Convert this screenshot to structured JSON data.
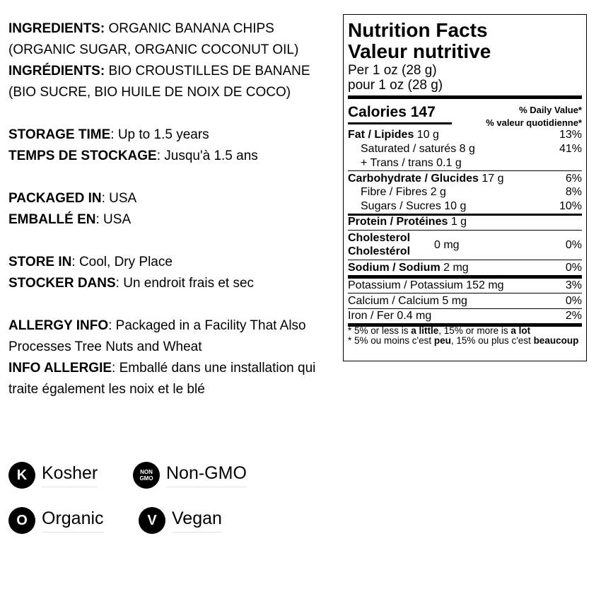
{
  "info": {
    "ingredients_label": "INGREDIENTS:",
    "ingredients_text": " ORGANIC BANANA CHIPS (ORGANIC SUGAR, ORGANIC COCONUT OIL)",
    "ingredients_fr_label": "INGRÉDIENTS:",
    "ingredients_fr_text": " BIO CROUSTILLES DE BANANE (BIO SUCRE, BIO HUILE DE NOIX DE COCO)",
    "storage_label": "STORAGE TIME",
    "storage_text": ": Up to 1.5 years",
    "storage_fr_label": "TEMPS DE STOCKAGE",
    "storage_fr_text": ": Jusqu'à 1.5 ans",
    "packaged_label": "PACKAGED IN",
    "packaged_text": ": USA",
    "packaged_fr_label": "EMBALLÉ EN",
    "packaged_fr_text": ": USA",
    "store_label": "STORE IN",
    "store_text": ": Cool, Dry Place",
    "store_fr_label": "STOCKER DANS",
    "store_fr_text": ": Un endroit frais et sec",
    "allergy_label": "ALLERGY INFO",
    "allergy_text": ": Packaged in a Facility That Also Processes Tree Nuts and Wheat",
    "allergy_fr_label": "INFO ALLERGIE",
    "allergy_fr_text": ": Emballé dans une installation qui traite également les noix et le blé"
  },
  "nutrition": {
    "title": "Nutrition Facts",
    "title_fr": "Valeur nutritive",
    "serving": "Per 1 oz (28 g)",
    "serving_fr": "pour 1 oz (28 g)",
    "calories_label": "Calories 147",
    "dv_label": "% Daily Value*",
    "dv_label_fr": "% valeur quotidienne*",
    "fat": {
      "label": "Fat / Lipides",
      "amount": " 10 g",
      "pct": "13%"
    },
    "saturated": {
      "label": "Saturated / saturés 8 g",
      "pct": "41%"
    },
    "trans": {
      "label": "+ Trans / trans 0.1 g"
    },
    "carb": {
      "label": "Carbohydrate / Glucides",
      "amount": " 17 g",
      "pct": "6%"
    },
    "fibre": {
      "label": "Fibre / Fibres 2 g",
      "pct": "8%"
    },
    "sugars": {
      "label": "Sugars / Sucres 10 g",
      "pct": "10%"
    },
    "protein": {
      "label": "Protein / Protéines",
      "amount": " 1 g"
    },
    "cholesterol": {
      "label": "Cholesterol",
      "label_fr": "Cholestérol",
      "amount": "0 mg",
      "pct": "0%"
    },
    "sodium": {
      "label": "Sodium / Sodium",
      "amount": " 2 mg",
      "pct": "0%"
    },
    "potassium": {
      "label": "Potassium / Potassium 152 mg",
      "pct": "3%"
    },
    "calcium": {
      "label": "Calcium / Calcium 5 mg",
      "pct": "0%"
    },
    "iron": {
      "label": "Iron / Fer 0.4 mg",
      "pct": "2%"
    },
    "foot1_a": "* 5% or less is ",
    "foot1_b": "a little",
    "foot1_c": ", 15% or more is ",
    "foot1_d": "a lot",
    "foot2_a": "* 5% ou moins c'est ",
    "foot2_b": "peu",
    "foot2_c": ", 15% ou plus c'est ",
    "foot2_d": "beaucoup"
  },
  "badges": [
    {
      "icon": "kosher-icon",
      "glyph": "K",
      "label": "Kosher"
    },
    {
      "icon": "non-gmo-icon",
      "glyph": "NON GMO",
      "label": "Non-GMO"
    },
    {
      "icon": "organic-icon",
      "glyph": "O",
      "label": "Organic"
    },
    {
      "icon": "vegan-icon",
      "glyph": "V",
      "label": "Vegan"
    }
  ]
}
